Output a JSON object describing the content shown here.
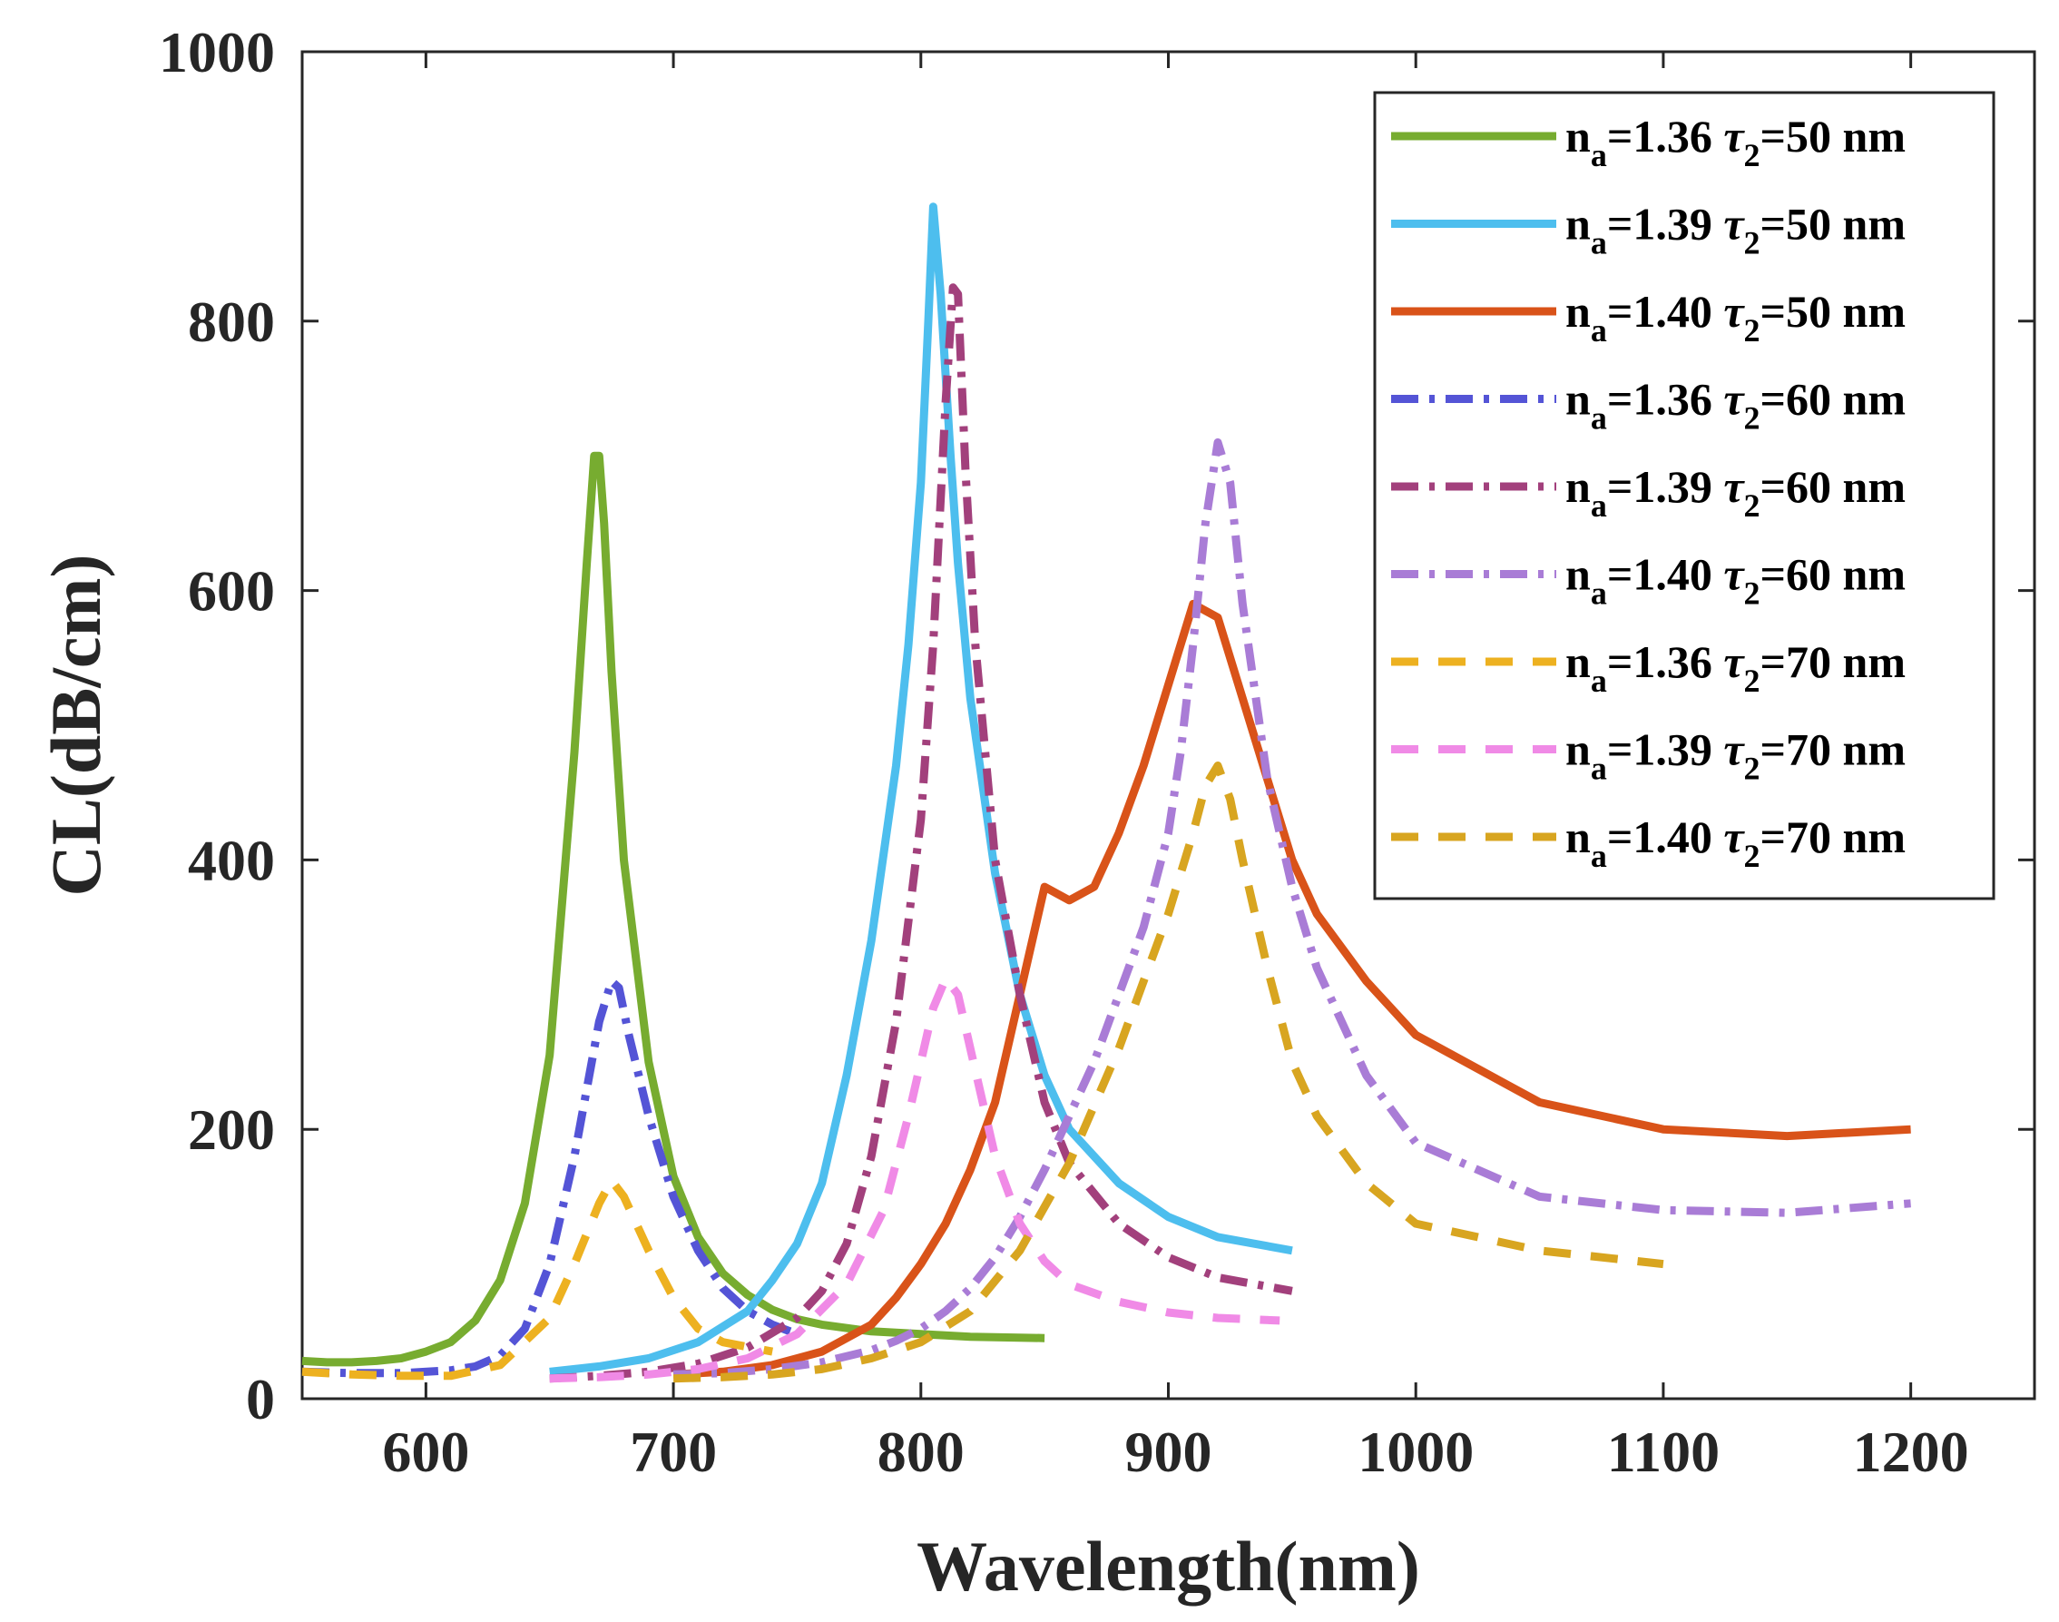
{
  "chart_data": {
    "type": "line",
    "title": "",
    "xlabel": "Wavelength(nm)",
    "ylabel": "CL(dB/cm)",
    "xlim": [
      550,
      1250
    ],
    "ylim": [
      0,
      1000
    ],
    "xticks": [
      "600",
      "700",
      "800",
      "900",
      "1000",
      "1100",
      "1200"
    ],
    "yticks": [
      "0",
      "200",
      "400",
      "600",
      "800",
      "1000"
    ],
    "legend_position": "top-right",
    "series": [
      {
        "n_value": "1.36",
        "tau_value": "50 nm",
        "color": "#77AC30",
        "style": "solid",
        "x": [
          550,
          560,
          570,
          580,
          590,
          600,
          610,
          620,
          630,
          640,
          650,
          660,
          665,
          668,
          670,
          672,
          675,
          680,
          690,
          700,
          710,
          720,
          730,
          740,
          750,
          760,
          780,
          800,
          820,
          850
        ],
        "y": [
          28,
          27,
          27,
          28,
          30,
          35,
          42,
          58,
          88,
          145,
          255,
          480,
          620,
          700,
          700,
          650,
          540,
          400,
          250,
          165,
          120,
          93,
          77,
          66,
          59,
          55,
          50,
          48,
          46,
          45
        ]
      },
      {
        "n_value": "1.39",
        "tau_value": "50 nm",
        "color": "#4DBEEE",
        "style": "solid",
        "x": [
          650,
          670,
          690,
          710,
          730,
          740,
          750,
          760,
          770,
          780,
          790,
          795,
          800,
          803,
          805,
          808,
          812,
          815,
          820,
          830,
          840,
          850,
          860,
          880,
          900,
          920,
          950
        ],
        "y": [
          20,
          24,
          30,
          42,
          65,
          88,
          115,
          160,
          240,
          340,
          470,
          560,
          680,
          800,
          885,
          820,
          700,
          620,
          520,
          390,
          300,
          240,
          200,
          160,
          135,
          120,
          110
        ]
      },
      {
        "n_value": "1.40",
        "tau_value": "50 nm",
        "color": "#D95319",
        "style": "solid",
        "x": [
          700,
          720,
          740,
          760,
          780,
          790,
          800,
          810,
          820,
          830,
          840,
          850,
          860,
          870,
          880,
          890,
          900,
          910,
          920,
          930,
          940,
          950,
          960,
          980,
          1000,
          1050,
          1100,
          1150,
          1200
        ],
        "y": [
          18,
          20,
          25,
          35,
          55,
          75,
          100,
          130,
          170,
          220,
          300,
          380,
          370,
          380,
          420,
          470,
          530,
          590,
          580,
          520,
          460,
          400,
          360,
          310,
          270,
          220,
          200,
          195,
          200
        ]
      },
      {
        "n_value": "1.36",
        "tau_value": "60 nm",
        "color": "#5454D6",
        "style": "dashdot",
        "x": [
          550,
          570,
          590,
          610,
          620,
          630,
          640,
          650,
          660,
          670,
          675,
          678,
          682,
          690,
          700,
          710,
          720,
          730,
          740,
          750
        ],
        "y": [
          20,
          19,
          19,
          21,
          24,
          32,
          52,
          100,
          180,
          280,
          310,
          305,
          270,
          210,
          150,
          110,
          82,
          65,
          55,
          48
        ]
      },
      {
        "n_value": "1.39",
        "tau_value": "60 nm",
        "color": "#A2407C",
        "style": "dashdot",
        "x": [
          650,
          670,
          690,
          710,
          730,
          750,
          760,
          770,
          780,
          790,
          800,
          805,
          810,
          813,
          815,
          818,
          822,
          830,
          840,
          850,
          860,
          880,
          900,
          920,
          950
        ],
        "y": [
          15,
          17,
          20,
          26,
          38,
          60,
          80,
          115,
          180,
          280,
          430,
          560,
          740,
          825,
          820,
          690,
          560,
          400,
          300,
          220,
          175,
          130,
          105,
          90,
          80
        ]
      },
      {
        "n_value": "1.40",
        "tau_value": "60 nm",
        "color": "#A97CD6",
        "style": "dashdot",
        "x": [
          700,
          720,
          740,
          760,
          780,
          790,
          800,
          810,
          820,
          830,
          840,
          850,
          860,
          870,
          880,
          890,
          900,
          905,
          910,
          915,
          920,
          925,
          930,
          940,
          950,
          960,
          980,
          1000,
          1050,
          1100,
          1150,
          1200
        ],
        "y": [
          18,
          19,
          22,
          27,
          36,
          43,
          52,
          65,
          82,
          105,
          135,
          170,
          210,
          250,
          300,
          350,
          420,
          480,
          560,
          650,
          710,
          680,
          590,
          460,
          380,
          320,
          240,
          190,
          150,
          140,
          138,
          145
        ]
      },
      {
        "n_value": "1.36",
        "tau_value": "70 nm",
        "color": "#EDB120",
        "style": "dashed",
        "x": [
          550,
          570,
          590,
          610,
          630,
          650,
          660,
          670,
          675,
          680,
          690,
          700,
          710,
          720,
          740
        ],
        "y": [
          20,
          18,
          17,
          17,
          25,
          60,
          100,
          145,
          162,
          150,
          110,
          75,
          52,
          42,
          35
        ]
      },
      {
        "n_value": "1.39",
        "tau_value": "70 nm",
        "color": "#F08AE6",
        "style": "dashed",
        "x": [
          650,
          670,
          690,
          710,
          730,
          750,
          770,
          785,
          795,
          805,
          810,
          815,
          820,
          830,
          840,
          850,
          860,
          880,
          900,
          920,
          945
        ],
        "y": [
          15,
          16,
          18,
          22,
          30,
          48,
          85,
          140,
          210,
          290,
          312,
          300,
          260,
          180,
          130,
          102,
          85,
          72,
          64,
          60,
          58
        ]
      },
      {
        "n_value": "1.40",
        "tau_value": "70 nm",
        "color": "#D8A520",
        "style": "dashed",
        "x": [
          700,
          720,
          740,
          760,
          780,
          800,
          820,
          840,
          860,
          880,
          900,
          910,
          915,
          920,
          925,
          930,
          940,
          950,
          960,
          980,
          1000,
          1050,
          1100
        ],
        "y": [
          15,
          16,
          18,
          22,
          30,
          42,
          65,
          110,
          175,
          260,
          360,
          420,
          455,
          470,
          445,
          400,
          320,
          250,
          210,
          160,
          130,
          110,
          100
        ]
      }
    ],
    "legend_template": {
      "n_prefix": "n",
      "n_sub": "a",
      "tau_symbol": "τ",
      "tau_sub": "2"
    }
  }
}
